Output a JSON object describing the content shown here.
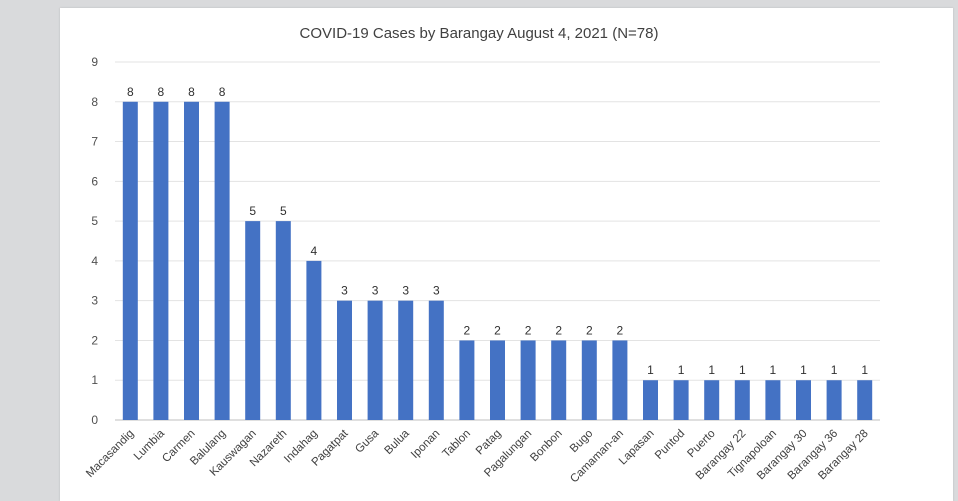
{
  "chart_data": {
    "type": "bar",
    "title": "COVID-19 Cases by Barangay August 4, 2021 (N=78)",
    "xlabel": "",
    "ylabel": "",
    "ylim": [
      0,
      9
    ],
    "yticks": [
      0,
      1,
      2,
      3,
      4,
      5,
      6,
      7,
      8,
      9
    ],
    "grid": true,
    "legend": "none",
    "bar_color": "#4472c4",
    "categories": [
      "Macasandig",
      "Lumbia",
      "Carmen",
      "Balulang",
      "Kauswagan",
      "Nazareth",
      "Indahag",
      "Pagatpat",
      "Gusa",
      "Bulua",
      "Iponan",
      "Tablon",
      "Patag",
      "Pagalungan",
      "Bonbon",
      "Bugo",
      "Camaman-an",
      "Lapasan",
      "Puntod",
      "Puerto",
      "Barangay 22",
      "Tignapoloan",
      "Barangay 30",
      "Barangay 36",
      "Barangay 28"
    ],
    "values": [
      8,
      8,
      8,
      8,
      5,
      5,
      4,
      3,
      3,
      3,
      3,
      2,
      2,
      2,
      2,
      2,
      2,
      1,
      1,
      1,
      1,
      1,
      1,
      1,
      1
    ]
  }
}
